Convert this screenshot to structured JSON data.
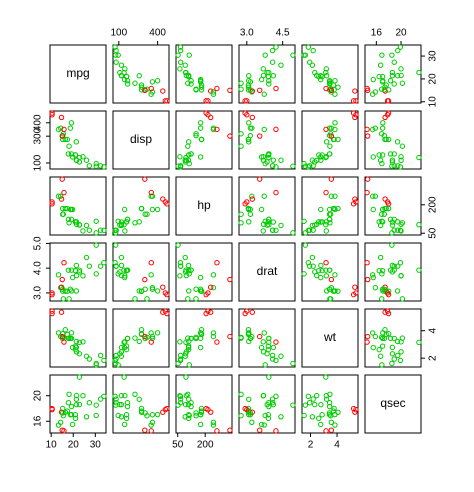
{
  "chart_data": {
    "type": "scatter-matrix",
    "point_colors": [
      "#00cc00",
      "#00cc00",
      "#00cc00",
      "#00cc00",
      "#00cc00",
      "#00cc00",
      "#00cc00",
      "#00cc00",
      "#00cc00",
      "#00cc00",
      "#00cc00",
      "#00cc00",
      "#00cc00",
      "#00cc00",
      "#ff0000",
      "#ff0000",
      "#ff0000",
      "#00cc00",
      "#00cc00",
      "#00cc00",
      "#00cc00",
      "#00cc00",
      "#00cc00",
      "#00cc00",
      "#00cc00",
      "#00cc00",
      "#00cc00",
      "#00cc00",
      "#ff0000",
      "#00cc00",
      "#ff0000",
      "#00cc00"
    ],
    "variables": [
      {
        "name": "mpg",
        "lim": [
          9.46,
          34.84
        ],
        "xticks": [
          10,
          20,
          30
        ],
        "yticks": [
          10,
          20,
          30
        ],
        "values": [
          21,
          21,
          22.8,
          21.4,
          18.7,
          18.1,
          14.3,
          24.4,
          22.8,
          19.2,
          17.8,
          16.4,
          17.3,
          15.2,
          10.4,
          10.4,
          14.7,
          32.4,
          30.4,
          33.9,
          21.5,
          15.5,
          15.2,
          13.3,
          19.2,
          27.3,
          26,
          30.4,
          15.8,
          19.7,
          15,
          21.4
        ]
      },
      {
        "name": "disp",
        "lim": [
          55.06,
          488.04
        ],
        "xticks": [
          100,
          400
        ],
        "yticks": [
          100,
          300,
          400
        ],
        "values": [
          160,
          160,
          108,
          258,
          360,
          225,
          360,
          146.7,
          140.8,
          167.6,
          167.6,
          275.8,
          275.8,
          275.8,
          472,
          460,
          440,
          78.7,
          75.7,
          71.1,
          120.1,
          318,
          304,
          350,
          400,
          79,
          120.3,
          95.1,
          351,
          145,
          301,
          121
        ]
      },
      {
        "name": "hp",
        "lim": [
          40.68,
          346.32
        ],
        "xticks": [
          50,
          200
        ],
        "yticks": [
          50,
          200
        ],
        "values": [
          110,
          110,
          93,
          110,
          175,
          105,
          245,
          62,
          95,
          123,
          123,
          180,
          180,
          180,
          205,
          215,
          230,
          66,
          52,
          65,
          97,
          150,
          150,
          245,
          175,
          66,
          91,
          113,
          264,
          175,
          335,
          109
        ]
      },
      {
        "name": "drat",
        "lim": [
          2.6732,
          5.0168
        ],
        "xticks": [
          {
            "value": 3,
            "label": "3.0"
          },
          4.5
        ],
        "yticks": [
          {
            "value": 3,
            "label": "3.0"
          },
          {
            "value": 4,
            "label": "4.0"
          },
          {
            "value": 5,
            "label": "5.0"
          }
        ],
        "values": [
          3.9,
          3.9,
          3.85,
          3.08,
          3.15,
          2.76,
          3.21,
          3.69,
          3.92,
          3.92,
          3.92,
          3.07,
          3.07,
          3.07,
          2.93,
          3,
          3.23,
          4.08,
          4.93,
          4.22,
          3.7,
          2.76,
          3.15,
          3.73,
          3.08,
          4.08,
          4.43,
          3.77,
          4.22,
          3.62,
          3.54,
          4.11
        ]
      },
      {
        "name": "wt",
        "lim": [
          1.3566,
          5.5804
        ],
        "xticks": [
          2,
          4
        ],
        "yticks": [
          2,
          4
        ],
        "values": [
          2.62,
          2.875,
          2.32,
          3.215,
          3.44,
          3.46,
          3.57,
          3.19,
          3.15,
          3.44,
          3.44,
          4.07,
          3.73,
          3.78,
          5.25,
          5.424,
          5.345,
          2.2,
          1.615,
          1.835,
          2.465,
          3.52,
          3.435,
          3.84,
          3.845,
          1.935,
          2.14,
          1.513,
          3.17,
          2.77,
          3.57,
          2.78
        ]
      },
      {
        "name": "qsec",
        "lim": [
          14.164,
          23.236
        ],
        "xticks": [
          16,
          20
        ],
        "yticks": [
          16,
          20
        ],
        "values": [
          16.46,
          17.02,
          18.61,
          19.44,
          17.02,
          20.22,
          15.84,
          20,
          22.9,
          18.3,
          18.9,
          17.4,
          17.6,
          18,
          17.98,
          17.82,
          17.42,
          19.47,
          18.52,
          19.9,
          20.01,
          16.87,
          17.3,
          15.41,
          17.05,
          18.9,
          16.7,
          16.9,
          14.5,
          15.5,
          14.6,
          18.6
        ]
      }
    ]
  }
}
